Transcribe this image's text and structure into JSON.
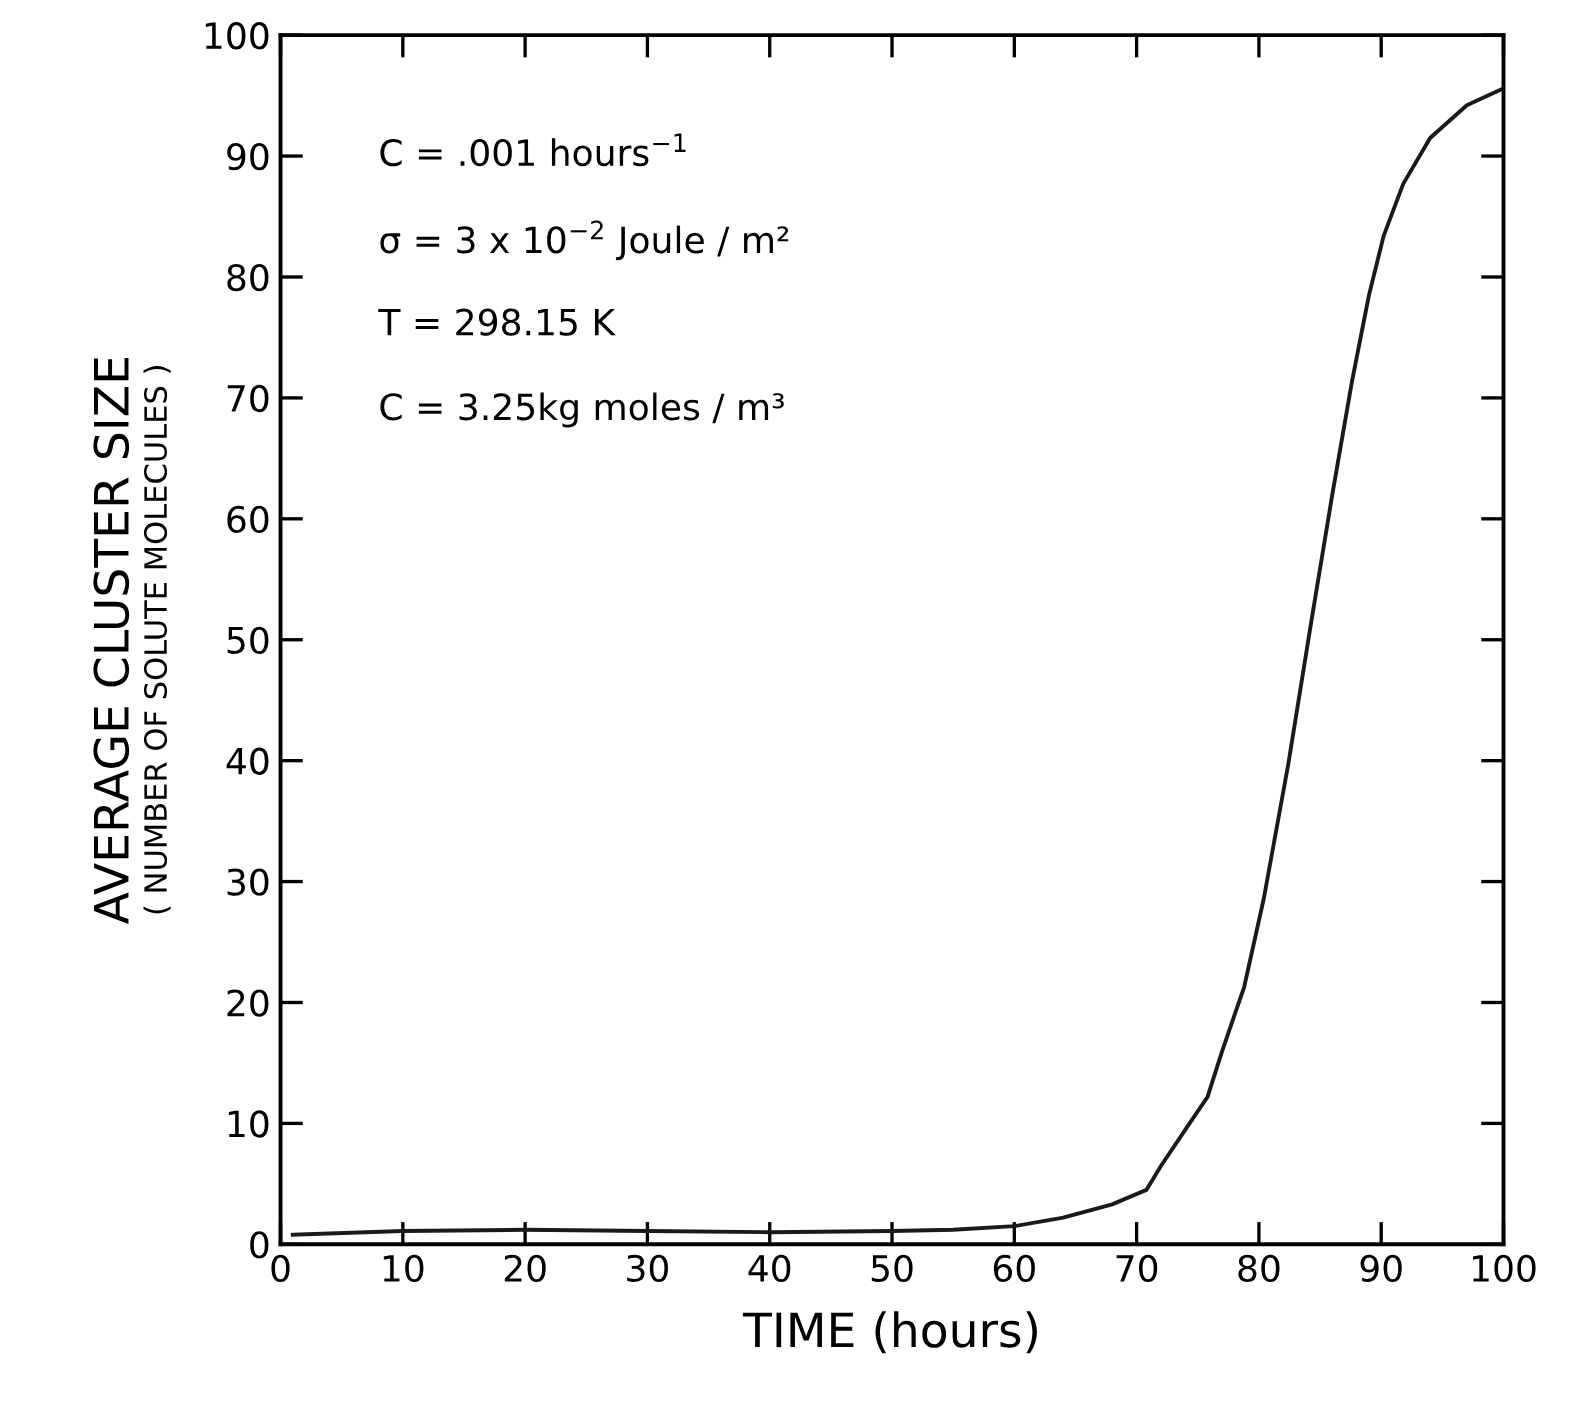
{
  "chart_data": {
    "type": "line",
    "xlabel": "TIME (hours)",
    "ylabel": "AVERAGE CLUSTER SIZE\n( NUMBER OF SOLUTE MOLECULES )",
    "x": [
      1,
      10,
      20,
      30,
      40,
      50,
      55,
      60,
      64,
      68,
      70.8,
      72,
      74,
      75.8,
      77,
      78.8,
      80.4,
      82.4,
      84.3,
      86,
      87.6,
      89,
      90.2,
      91.8,
      94,
      97,
      100
    ],
    "series": [
      {
        "color": "#1a1a1a",
        "values": [
          0.8,
          1.1,
          1.2,
          1.1,
          1.0,
          1.1,
          1.2,
          1.5,
          2.2,
          3.3,
          4.5,
          6.5,
          9.5,
          12.2,
          16,
          21.3,
          28.6,
          39.7,
          51.6,
          62,
          71.3,
          78.5,
          83.4,
          87.7,
          91.5,
          94.2,
          95.6
        ]
      }
    ],
    "xlim": [
      0,
      100
    ],
    "ylim": [
      0,
      100
    ],
    "xticks": [
      0,
      10,
      20,
      30,
      40,
      50,
      60,
      70,
      80,
      90,
      100
    ],
    "yticks": [
      0,
      10,
      20,
      30,
      40,
      50,
      60,
      70,
      80,
      90,
      100
    ],
    "grid": false,
    "legend": false,
    "marker": "none",
    "line_style": "solid",
    "annotations": [
      "C = .001 hours$^{−1}$",
      "σ = 3 x 10$^{−2}$ Joule / m²",
      "T = 298.15 K",
      "C = 3.25kg moles / m³"
    ]
  }
}
